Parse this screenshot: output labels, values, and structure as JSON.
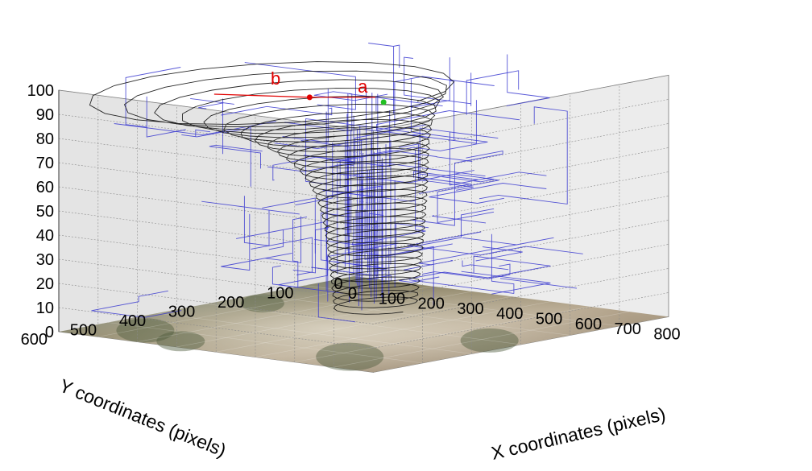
{
  "chart_data": {
    "type": "line3d",
    "title": "",
    "xlabel": "X coordinates (pixels)",
    "ylabel": "Y coordinates (pixels)",
    "zlabel": "",
    "xlim": [
      0,
      800
    ],
    "ylim": [
      0,
      600
    ],
    "zlim": [
      0,
      100
    ],
    "x_ticks": [
      "0",
      "100",
      "200",
      "300",
      "400",
      "500",
      "600",
      "700",
      "800"
    ],
    "y_ticks": [
      "0",
      "100",
      "200",
      "300",
      "400",
      "500",
      "600"
    ],
    "z_ticks": [
      "0",
      "10",
      "20",
      "30",
      "40",
      "50",
      "60",
      "70",
      "80",
      "90",
      "100"
    ],
    "grid": true,
    "floor_image": "photograph of an outdoor scene with trees and a path",
    "colors": {
      "trajectories": "#3a3ad0",
      "helix": "#111111",
      "annotation": "#e00000",
      "marker_a": "#22c022",
      "wall": "#e4e4e4",
      "grid": "#8a8a8a"
    },
    "annotations": [
      "a",
      "b"
    ],
    "series": [
      {
        "label": "helix",
        "type": "helix",
        "center": [
          330,
          220
        ],
        "z_range": [
          2,
          95
        ]
      },
      {
        "label": "trajectories",
        "type": "polyline_set"
      }
    ]
  }
}
